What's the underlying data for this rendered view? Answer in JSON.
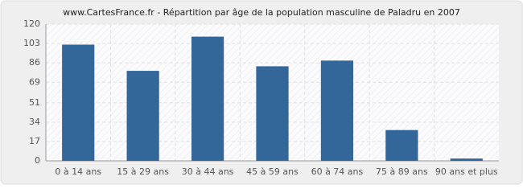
{
  "chart_data": {
    "type": "bar",
    "title": "www.CartesFrance.fr - Répartition par âge de la population masculine de Paladru en 2007",
    "categories": [
      "0 à 14 ans",
      "15 à 29 ans",
      "30 à 44 ans",
      "45 à 59 ans",
      "60 à 74 ans",
      "75 à 89 ans",
      "90 ans et plus"
    ],
    "values": [
      102,
      79,
      109,
      83,
      88,
      27,
      2
    ],
    "color": "#336699",
    "ylim": [
      0,
      120
    ],
    "yticks": [
      0,
      17,
      34,
      51,
      69,
      86,
      103,
      120
    ],
    "grid": true
  }
}
